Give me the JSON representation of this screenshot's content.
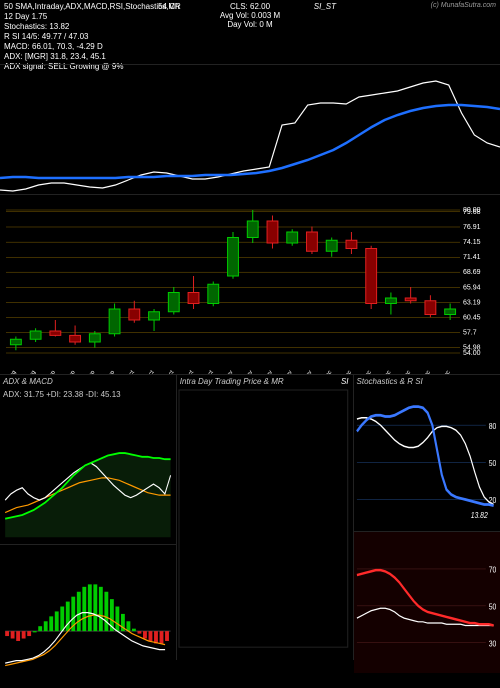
{
  "header": {
    "indicators_line": "50 SMA,Intraday,ADX,MACD,RSI,Stochastics,MR",
    "sub_line1": "12 Day      1.75",
    "stochastics": "Stochastics: 13.82",
    "rsi": "R        SI 14/5: 49.77 / 47.03",
    "macd": "MACD: 66.01, 70.3, -4.29 D",
    "adx": "ADX:                                [MGR] 31.8,  23.4,  45.1",
    "adx_signal": "ADX  signal: SELL  Growing @ 9%",
    "right_si": "SI_ST",
    "center_cls": "CLS: 62.00",
    "center_avg": "Avg Vol: 0.003    M",
    "center_dayvol": "Day Vol: 0   M",
    "brand": "(c) MunafaSutra.com",
    "label_unknown": "54 Ch"
  },
  "colors": {
    "bg": "#000000",
    "text": "#ffffff",
    "accent_blue": "#1e6fff",
    "accent_white": "#ffffff",
    "hline": "#806000",
    "up": "#00cc00",
    "down": "#e02020",
    "adx_green": "#00ff00",
    "adx_orange": "#ff9a00",
    "adx_white": "#ffffff",
    "adx_bg_fill": "#103a10",
    "stoch_blue": "#3a78ff",
    "stoch_white": "#ffffff",
    "rsi_red": "#ff2a2a"
  },
  "price_panel": {
    "blue": [
      113,
      112,
      112,
      113,
      113,
      113,
      113,
      113,
      113,
      113,
      112,
      112,
      112,
      111,
      111,
      111,
      110,
      110,
      110,
      109,
      108,
      106,
      103,
      99,
      95,
      90,
      85,
      78,
      70,
      62,
      55,
      50,
      46,
      43,
      41,
      40,
      40,
      41,
      42,
      44
    ],
    "white": [
      125,
      126,
      124,
      120,
      118,
      118,
      120,
      122,
      123,
      120,
      115,
      110,
      107,
      108,
      111,
      114,
      114,
      112,
      109,
      106,
      104,
      102,
      60,
      58,
      40,
      38,
      38,
      39,
      32,
      30,
      28,
      26,
      22,
      18,
      16,
      20,
      48,
      70,
      78,
      82
    ]
  },
  "candle_panel": {
    "y_levels": {
      "80.00": 20,
      "79.68": 22,
      "76.91": 36,
      "74.15": 50,
      "71.41": 63,
      "68.69": 76,
      "65.94": 90,
      "63.19": 103,
      "60.45": 117,
      "57.7": 130,
      "54.98": 144,
      "54.00": 148
    },
    "dates": [
      "20 Aug",
      "30 Aug",
      "06 Sep",
      "15 Sep",
      "22 Sep",
      "29 Sep",
      "07 Oct",
      "13 Oct",
      "17 Oct",
      "25 Oct",
      "31 Oct",
      "04 Nov",
      "12 Nov",
      "18 Nov",
      "22 Nov",
      "26 Nov",
      "02 Dec",
      "06 Dec",
      "12 Dec",
      "17 Dec",
      "20 Dec",
      "24 Dec",
      "30 Dec"
    ],
    "candles": [
      {
        "o": 55.5,
        "h": 57.0,
        "l": 54.5,
        "c": 56.5
      },
      {
        "o": 56.5,
        "h": 58.5,
        "l": 56.0,
        "c": 58.0
      },
      {
        "o": 58.0,
        "h": 60.0,
        "l": 57.0,
        "c": 57.2
      },
      {
        "o": 57.2,
        "h": 59.0,
        "l": 55.5,
        "c": 56.0
      },
      {
        "o": 56.0,
        "h": 58.0,
        "l": 55.0,
        "c": 57.5
      },
      {
        "o": 57.5,
        "h": 63.0,
        "l": 57.0,
        "c": 62.0
      },
      {
        "o": 62.0,
        "h": 63.5,
        "l": 59.5,
        "c": 60.0
      },
      {
        "o": 60.0,
        "h": 62.0,
        "l": 58.0,
        "c": 61.5
      },
      {
        "o": 61.5,
        "h": 66.0,
        "l": 61.0,
        "c": 65.0
      },
      {
        "o": 65.0,
        "h": 68.0,
        "l": 62.0,
        "c": 63.0
      },
      {
        "o": 63.0,
        "h": 67.0,
        "l": 62.5,
        "c": 66.5
      },
      {
        "o": 68.0,
        "h": 76.0,
        "l": 67.5,
        "c": 75.0
      },
      {
        "o": 75.0,
        "h": 80.0,
        "l": 74.0,
        "c": 78.0
      },
      {
        "o": 78.0,
        "h": 79.0,
        "l": 73.0,
        "c": 74.0
      },
      {
        "o": 74.0,
        "h": 76.5,
        "l": 73.5,
        "c": 76.0
      },
      {
        "o": 76.0,
        "h": 77.0,
        "l": 72.0,
        "c": 72.5
      },
      {
        "o": 72.5,
        "h": 75.0,
        "l": 71.5,
        "c": 74.5
      },
      {
        "o": 74.5,
        "h": 76.0,
        "l": 72.0,
        "c": 73.0
      },
      {
        "o": 73.0,
        "h": 73.5,
        "l": 62.0,
        "c": 63.0
      },
      {
        "o": 63.0,
        "h": 65.0,
        "l": 61.0,
        "c": 64.0
      },
      {
        "o": 64.0,
        "h": 66.0,
        "l": 63.0,
        "c": 63.5
      },
      {
        "o": 63.5,
        "h": 64.5,
        "l": 60.5,
        "c": 61.0
      },
      {
        "o": 61.0,
        "h": 63.0,
        "l": 60.0,
        "c": 62.0
      }
    ],
    "price_min": 54.0,
    "price_max": 80.0
  },
  "bottom": {
    "adx_title": "ADX  & MACD",
    "adx_line": "ADX: 31.75 +DI: 23.38  -DI: 45.13",
    "intra_title": "Intra   Day Trading Price  & MR",
    "stoch_title": "Stochastics & R           SI",
    "stoch_reading": "13.82",
    "adx": {
      "white": [
        80,
        75,
        72,
        70,
        75,
        78,
        80,
        78,
        74,
        70,
        66,
        62,
        58,
        55,
        52,
        50,
        53,
        58,
        63,
        68,
        72,
        76,
        78,
        76,
        73,
        70,
        67,
        70,
        75,
        60
      ],
      "green": [
        95,
        94,
        93,
        92,
        90,
        88,
        85,
        82,
        78,
        74,
        70,
        65,
        60,
        56,
        52,
        50,
        48,
        46,
        44,
        43,
        42,
        42,
        43,
        44,
        45,
        45,
        46,
        46,
        47,
        47
      ],
      "orange": [
        90,
        88,
        86,
        85,
        84,
        82,
        80,
        78,
        76,
        74,
        72,
        70,
        68,
        66,
        65,
        64,
        63,
        62,
        62,
        63,
        64,
        66,
        68,
        70,
        72,
        74,
        75,
        76,
        76,
        76
      ]
    },
    "macd": {
      "hist": [
        -2,
        -3,
        -4,
        -3,
        -2,
        0,
        2,
        4,
        6,
        8,
        10,
        12,
        14,
        16,
        18,
        19,
        19,
        18,
        16,
        13,
        10,
        7,
        4,
        1,
        -1,
        -3,
        -4,
        -5,
        -5,
        -4
      ],
      "line": [
        96,
        95,
        94,
        94,
        93,
        92,
        90,
        87,
        83,
        78,
        72,
        66,
        61,
        57,
        55,
        55,
        56,
        58,
        61,
        65,
        69,
        72,
        75,
        78,
        80,
        82,
        83,
        84,
        85,
        85
      ],
      "signal": [
        98,
        97,
        96,
        95,
        94,
        93,
        91,
        89,
        86,
        82,
        77,
        72,
        67,
        63,
        60,
        58,
        57,
        57,
        58,
        60,
        63,
        66,
        69,
        72,
        74,
        76,
        78,
        79,
        80,
        81
      ]
    },
    "stoch": {
      "levels": {
        "80": 30,
        "50": 60,
        "20": 90
      },
      "blue": [
        35,
        30,
        26,
        23,
        22,
        22,
        23,
        23,
        22,
        20,
        18,
        16,
        15,
        15,
        16,
        20,
        30,
        50,
        70,
        82,
        86,
        88,
        89,
        90,
        91,
        92,
        93,
        94,
        94,
        95
      ],
      "white": [
        25,
        24,
        24,
        25,
        27,
        30,
        34,
        38,
        42,
        45,
        47,
        48,
        48,
        47,
        44,
        40,
        35,
        32,
        31,
        31,
        32,
        34,
        38,
        45,
        55,
        68,
        80,
        88,
        92,
        94
      ]
    },
    "rsi": {
      "levels": {
        "70": 30,
        "50": 60,
        "30": 90
      },
      "red": [
        35,
        34,
        33,
        32,
        31,
        31,
        32,
        34,
        37,
        41,
        46,
        51,
        56,
        60,
        63,
        65,
        66,
        67,
        68,
        69,
        70,
        71,
        72,
        73,
        74,
        74,
        75,
        75,
        75,
        76
      ],
      "white": [
        70,
        68,
        66,
        64,
        63,
        62,
        62,
        63,
        65,
        68,
        70,
        71,
        72,
        73,
        73,
        74,
        74,
        74,
        74,
        75,
        75,
        75,
        75,
        76,
        76,
        76,
        76,
        76,
        76,
        76
      ]
    }
  }
}
